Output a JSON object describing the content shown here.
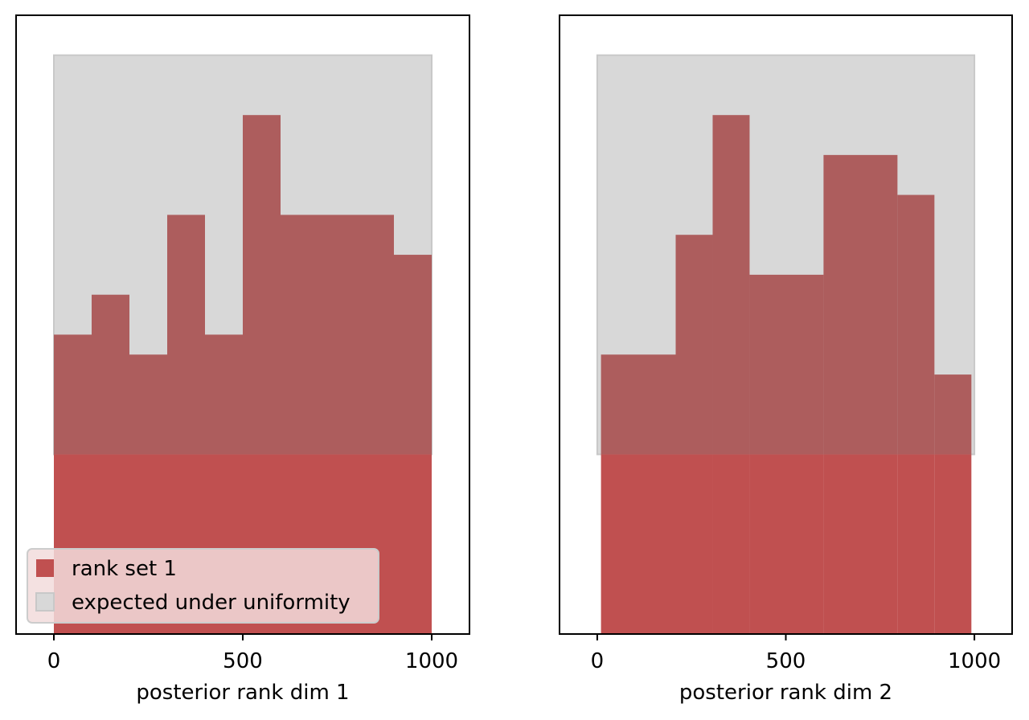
{
  "chart_data": [
    {
      "type": "bar",
      "xlabel": "posterior rank dim 1",
      "ylabel": "",
      "xlim": [
        -100,
        1100
      ],
      "xticks": [
        0,
        500,
        1000
      ],
      "tick_labels": [
        "0",
        "500",
        "1000"
      ],
      "y_tick_labels_shown": false,
      "bin_edges": [
        0,
        100,
        200,
        300,
        400,
        500,
        600,
        700,
        800,
        900,
        1000
      ],
      "series": [
        {
          "name": "rank set 1",
          "values": [
            7.5,
            8.5,
            7,
            10.5,
            7.5,
            13,
            10.5,
            10.5,
            10.5,
            9.5
          ]
        }
      ],
      "uniformity_band": {
        "lower": 4.5,
        "upper": 14.5,
        "x_range": [
          0,
          1000
        ]
      },
      "ylim": [
        0,
        15.5
      ],
      "legend": {
        "placement": "lower-left",
        "entries": [
          {
            "label": "rank set 1",
            "color": "#c05050"
          },
          {
            "label": "expected under uniformity",
            "color": "#d8d8d8"
          }
        ]
      }
    },
    {
      "type": "bar",
      "xlabel": "posterior rank dim 2",
      "ylabel": "",
      "xlim": [
        -100,
        1100
      ],
      "xticks": [
        0,
        500,
        1000
      ],
      "tick_labels": [
        "0",
        "500",
        "1000"
      ],
      "y_tick_labels_shown": false,
      "bin_edges": [
        10,
        208,
        306,
        404,
        600,
        796,
        894,
        992
      ],
      "series": [
        {
          "name": "rank set 1",
          "values": [
            7,
            10,
            13,
            9,
            12,
            11,
            6.5
          ]
        }
      ],
      "uniformity_band": {
        "lower": 4.5,
        "upper": 14.5,
        "x_range": [
          0,
          1000
        ]
      },
      "ylim": [
        0,
        15.5
      ]
    }
  ],
  "colors": {
    "bar": "#c05050",
    "band": "#d8d8d8",
    "band_edge": "#c8c8c8",
    "overlap": "#ad5d5d",
    "legend_bg": "#f2dcdc"
  }
}
